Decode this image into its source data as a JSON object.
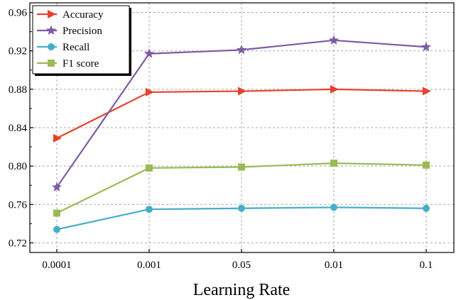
{
  "chart_data": {
    "type": "line",
    "categories": [
      "0.0001",
      "0.001",
      "0.05",
      "0.01",
      "0.1"
    ],
    "xlabel": "Learning Rate",
    "ylabel": "",
    "ylim": [
      0.71,
      0.97
    ],
    "yticks": [
      "0.72",
      "0.76",
      "0.80",
      "0.84",
      "0.88",
      "0.92",
      "0.96"
    ],
    "grid": true,
    "legend": "top-left",
    "series": [
      {
        "name": "Accuracy",
        "color": "#e8412c",
        "marker": "triangle-right",
        "values": [
          0.829,
          0.877,
          0.878,
          0.88,
          0.878
        ]
      },
      {
        "name": "Precision",
        "color": "#7d5ba6",
        "marker": "star",
        "values": [
          0.778,
          0.917,
          0.921,
          0.931,
          0.924
        ]
      },
      {
        "name": "Recall",
        "color": "#45afc9",
        "marker": "circle",
        "values": [
          0.734,
          0.755,
          0.756,
          0.757,
          0.756
        ]
      },
      {
        "name": "F1 score",
        "color": "#99bb55",
        "marker": "square",
        "values": [
          0.751,
          0.798,
          0.799,
          0.803,
          0.801
        ]
      }
    ]
  }
}
